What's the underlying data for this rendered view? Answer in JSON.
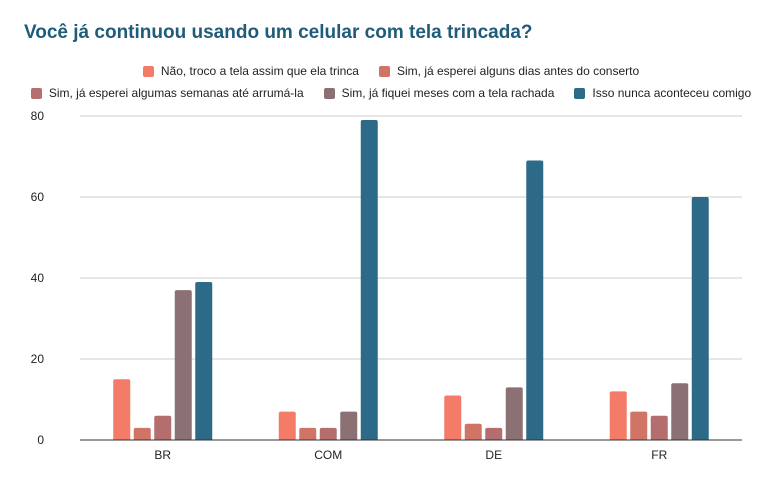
{
  "chart_data": {
    "type": "bar",
    "title": "Você já continuou usando um celular com tela trincada?",
    "xlabel": "",
    "ylabel": "",
    "categories": [
      "BR",
      "COM",
      "DE",
      "FR"
    ],
    "ylim": [
      0,
      80
    ],
    "yticks": [
      0,
      20,
      40,
      60,
      80
    ],
    "grid": true,
    "legend_position": "top",
    "series": [
      {
        "name": "Não, troco a tela assim que ela trinca",
        "color": "#f47b67",
        "values": [
          15,
          7,
          11,
          12
        ]
      },
      {
        "name": "Sim, já esperei alguns dias antes do conserto",
        "color": "#d07466",
        "values": [
          3,
          3,
          4,
          7
        ]
      },
      {
        "name": "Sim, já esperei algumas semanas até arrumá-la",
        "color": "#b56e6e",
        "values": [
          6,
          3,
          3,
          6
        ]
      },
      {
        "name": "Sim, já fiquei meses com a tela rachada",
        "color": "#8b7074",
        "values": [
          37,
          7,
          13,
          14
        ]
      },
      {
        "name": "Isso nunca aconteceu comigo",
        "color": "#2c6a87",
        "values": [
          39,
          79,
          69,
          60
        ]
      }
    ]
  }
}
